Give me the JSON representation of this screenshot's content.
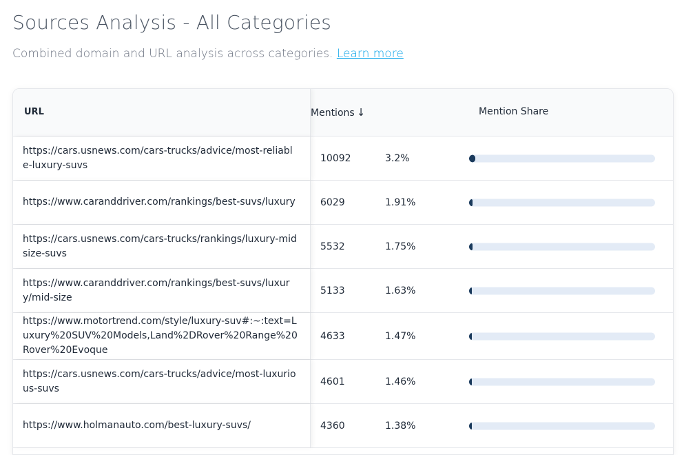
{
  "header": {
    "title": "Sources Analysis - All Categories",
    "subtitle": "Combined domain and URL analysis across categories.",
    "learn_more": "Learn more"
  },
  "table": {
    "columns": {
      "url": "URL",
      "mentions": "Mentions",
      "share": "Mention Share"
    },
    "sort_icon": "arrow-down-icon",
    "rows": [
      {
        "url": "https://cars.usnews.com/cars-trucks/advice/most-reliable-luxury-suvs",
        "mentions": "10092",
        "pct": "3.2%",
        "share": 0.032
      },
      {
        "url": "https://www.caranddriver.com/rankings/best-suvs/luxury",
        "mentions": "6029",
        "pct": "1.91%",
        "share": 0.0191
      },
      {
        "url": "https://cars.usnews.com/cars-trucks/rankings/luxury-midsize-suvs",
        "mentions": "5532",
        "pct": "1.75%",
        "share": 0.0175
      },
      {
        "url": "https://www.caranddriver.com/rankings/best-suvs/luxury/mid-size",
        "mentions": "5133",
        "pct": "1.63%",
        "share": 0.0163
      },
      {
        "url": "https://www.motortrend.com/style/luxury-suv#:~:text=Luxury%20SUV%20Models,Land%2DRover%20Range%20Rover%20Evoque",
        "mentions": "4633",
        "pct": "1.47%",
        "share": 0.0147
      },
      {
        "url": "https://cars.usnews.com/cars-trucks/advice/most-luxurious-suvs",
        "mentions": "4601",
        "pct": "1.46%",
        "share": 0.0146
      },
      {
        "url": "https://www.holmanauto.com/best-luxury-suvs/",
        "mentions": "4360",
        "pct": "1.38%",
        "share": 0.0138
      }
    ]
  },
  "colors": {
    "bar_fill": "#1a3a5c",
    "bar_track": "#e3ebf6",
    "link": "#0ea5e9"
  }
}
